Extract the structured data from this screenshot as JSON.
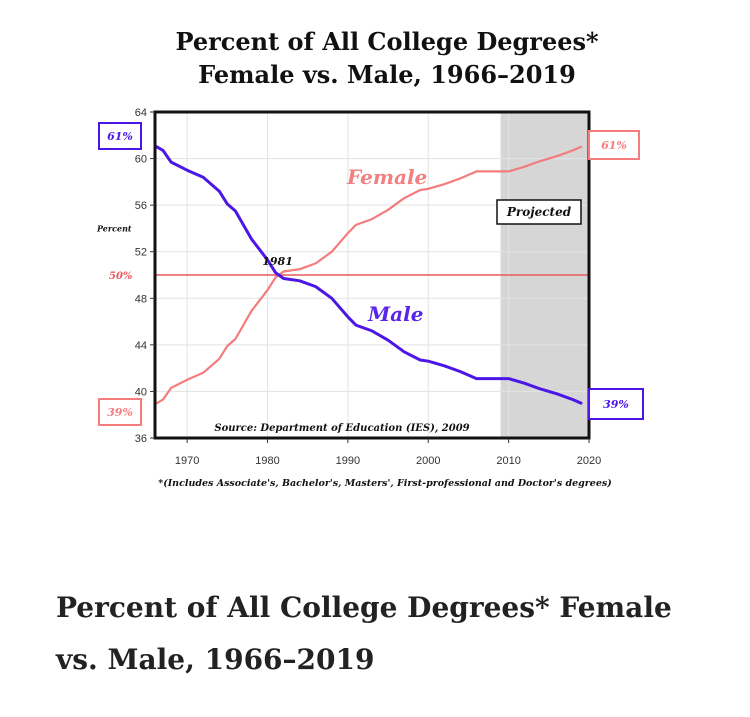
{
  "caption": "Percent of All College Degrees* Female vs. Male, 1966–2019",
  "colors": {
    "female": "#f47c7c",
    "male": "#4b16e6",
    "fifty_line": "#e8585c",
    "projected_shade": "#d6d6d6",
    "male_label": "#5a25e8",
    "female_label": "#f28080"
  },
  "chart_data": {
    "type": "line",
    "title_lines": [
      "Percent of All College Degrees*",
      "Female vs. Male, 1966–2019"
    ],
    "ylabel": "Percent",
    "xlim": [
      1966,
      2020
    ],
    "ylim": [
      36,
      64
    ],
    "x_ticks": [
      1970,
      1980,
      1990,
      2000,
      2010,
      2020
    ],
    "y_ticks": [
      36,
      40,
      44,
      48,
      52,
      56,
      60,
      64
    ],
    "grid": true,
    "reference_line": {
      "value": 50,
      "label": "50%"
    },
    "projected_region": {
      "from": 2009,
      "to": 2020,
      "label": "Projected"
    },
    "annotations": {
      "crossover": "1981",
      "source": "Source: Department of Education (IES), 2009",
      "footnote": "*(Includes Associate's, Bachelor's, Masters', First-professional and Doctor's degrees)"
    },
    "end_labels": {
      "male_start": "61%",
      "female_start": "39%",
      "female_end": "61%",
      "male_end": "39%"
    },
    "series": [
      {
        "name": "Female",
        "x": [
          1966,
          1967,
          1968,
          1970,
          1972,
          1974,
          1975,
          1976,
          1978,
          1980,
          1981,
          1982,
          1984,
          1986,
          1988,
          1990,
          1991,
          1993,
          1995,
          1997,
          1999,
          2000,
          2002,
          2004,
          2006,
          2008,
          2010,
          2012,
          2014,
          2016,
          2018,
          2019
        ],
        "values": [
          38.9,
          39.3,
          40.3,
          41.0,
          41.6,
          42.8,
          43.9,
          44.5,
          46.9,
          48.7,
          49.8,
          50.3,
          50.5,
          51.0,
          52.0,
          53.6,
          54.3,
          54.8,
          55.6,
          56.6,
          57.3,
          57.4,
          57.8,
          58.3,
          58.9,
          58.9,
          58.9,
          59.3,
          59.8,
          60.2,
          60.7,
          61.0
        ]
      },
      {
        "name": "Male",
        "x": [
          1966,
          1967,
          1968,
          1970,
          1972,
          1974,
          1975,
          1976,
          1978,
          1980,
          1981,
          1982,
          1984,
          1986,
          1988,
          1990,
          1991,
          1993,
          1995,
          1997,
          1999,
          2000,
          2002,
          2004,
          2006,
          2008,
          2010,
          2012,
          2014,
          2016,
          2018,
          2019
        ],
        "values": [
          61.1,
          60.7,
          59.7,
          59.0,
          58.4,
          57.2,
          56.1,
          55.5,
          53.1,
          51.3,
          50.2,
          49.7,
          49.5,
          49.0,
          48.0,
          46.4,
          45.7,
          45.2,
          44.4,
          43.4,
          42.7,
          42.6,
          42.2,
          41.7,
          41.1,
          41.1,
          41.1,
          40.7,
          40.2,
          39.8,
          39.3,
          39.0
        ]
      }
    ]
  }
}
